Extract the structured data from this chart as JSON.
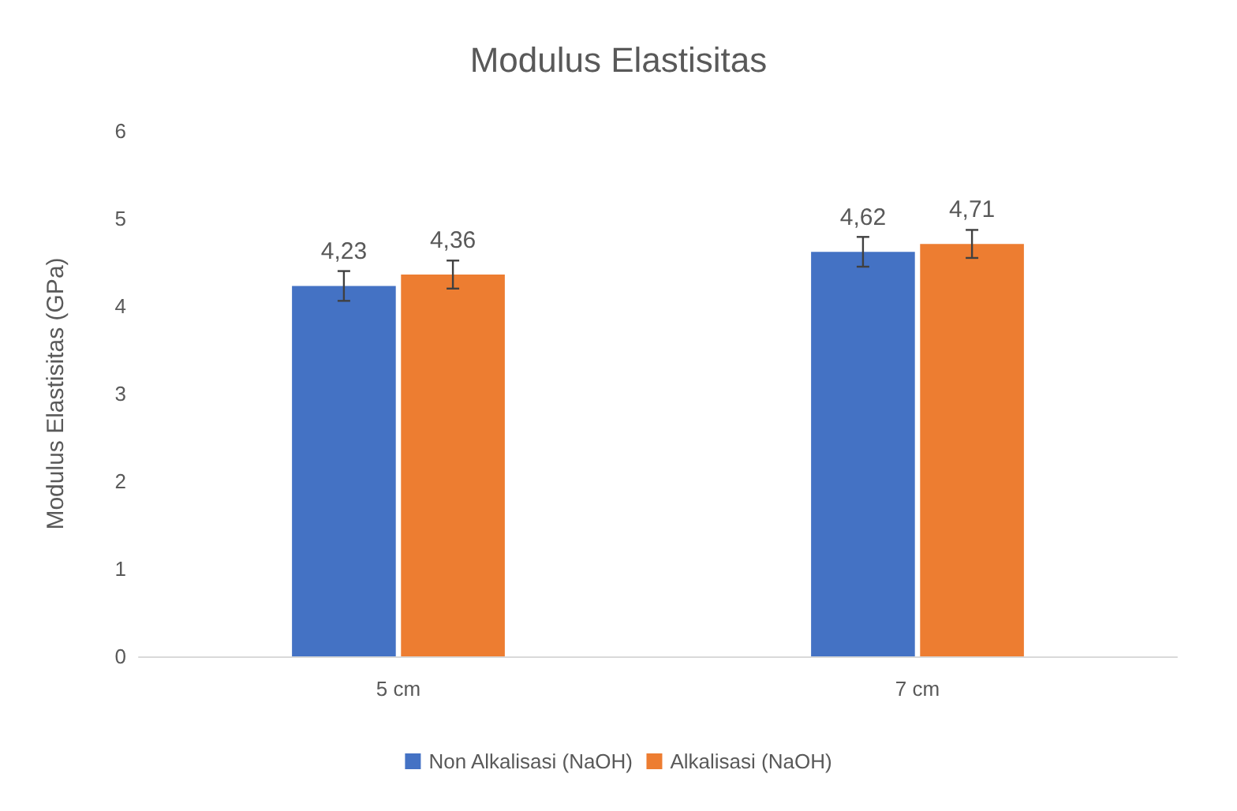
{
  "chart_data": {
    "type": "bar",
    "title": "Modulus Elastisitas",
    "ylabel": "Modulus Elastisitas (GPa)",
    "categories": [
      "5 cm",
      "7 cm"
    ],
    "series": [
      {
        "name": "Non Alkalisasi (NaOH)",
        "color": "#4472c4",
        "values": [
          4.23,
          4.62
        ],
        "errors": [
          0.17,
          0.17
        ],
        "value_labels": [
          "4,23",
          "4,62"
        ]
      },
      {
        "name": "Alkalisasi (NaOH)",
        "color": "#ed7d31",
        "values": [
          4.36,
          4.71
        ],
        "errors": [
          0.16,
          0.16
        ],
        "value_labels": [
          "4,36",
          "4,71"
        ]
      }
    ],
    "ylim": [
      0,
      6
    ],
    "yticks": [
      0,
      1,
      2,
      3,
      4,
      5,
      6
    ],
    "grid": false,
    "legend": "bottom"
  }
}
